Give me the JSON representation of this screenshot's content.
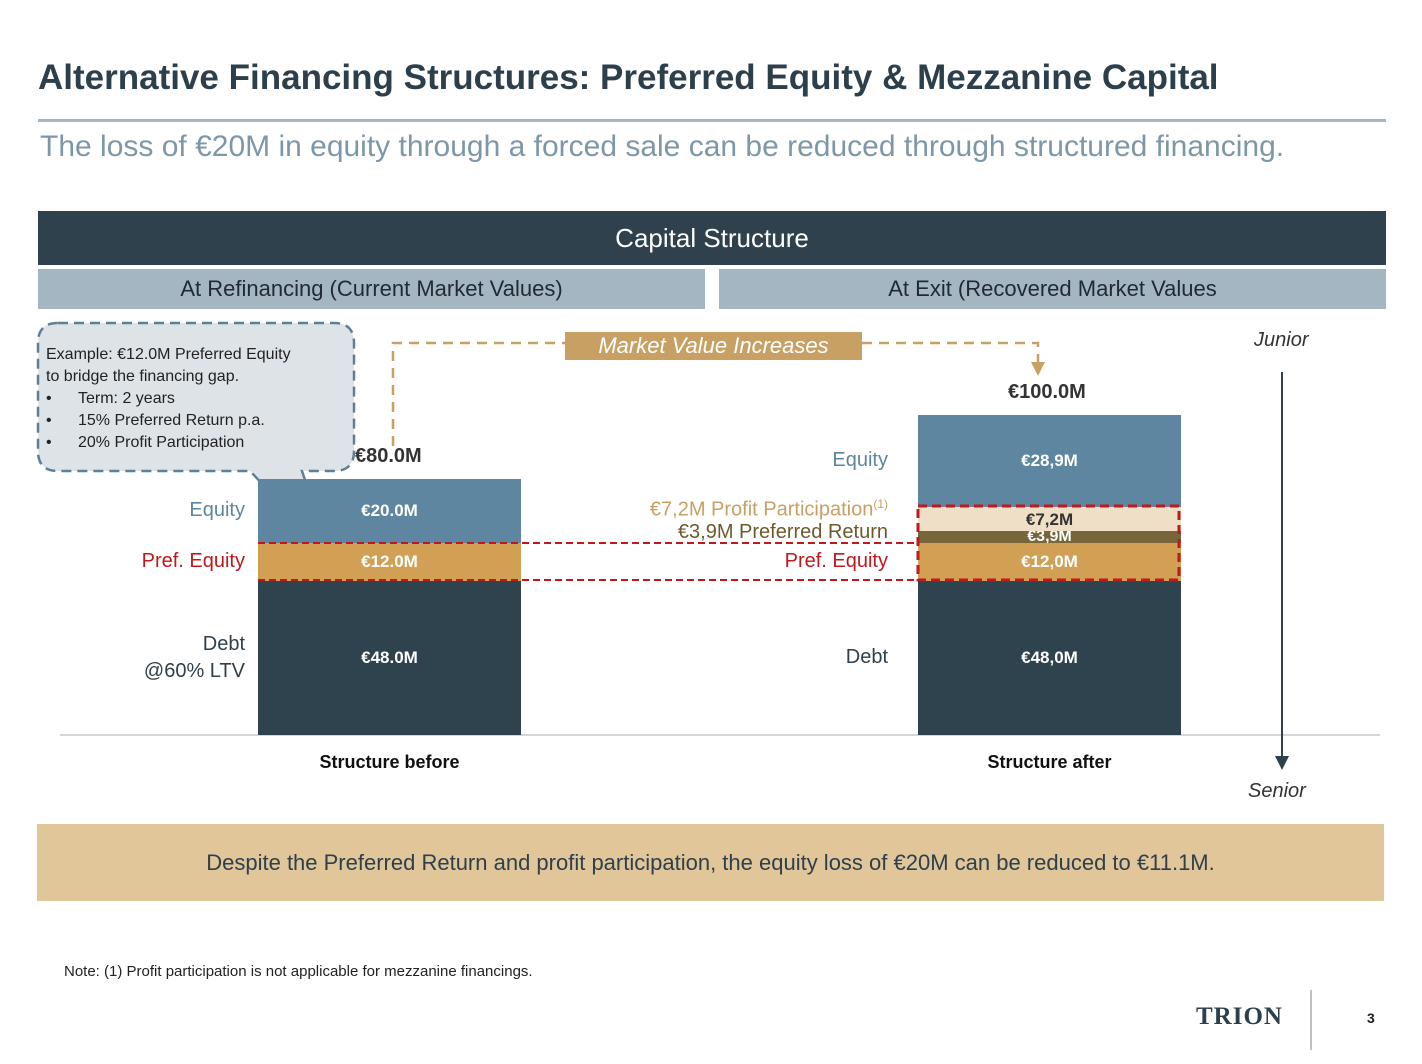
{
  "header": {
    "title": "Alternative Financing Structures: Preferred Equity & Mezzanine Capital",
    "subtitle": "The loss of €20M in equity through a forced sale can be reduced through structured financing."
  },
  "banner": {
    "main": "Capital Structure",
    "left": "At Refinancing (Current Market Values)",
    "right": "At Exit (Recovered Market Values"
  },
  "callout": {
    "example_label": "Example",
    "example_text": ": €12.0M Preferred Equity",
    "example_text2": "to bridge the financing gap.",
    "bullets": [
      "Term: 2 years",
      "15% Preferred Return p.a.",
      "20% Profit Participation"
    ],
    "bullet_char": "•"
  },
  "market_value_label": "Market Value Increases",
  "seniority": {
    "top": "Junior",
    "bottom": "Senior"
  },
  "conclusion": "Despite the Preferred Return and profit participation, the equity loss of €20M can be reduced to €11.1M.",
  "footnote": "Note: (1) Profit participation is not applicable for mezzanine financings.",
  "logo": "TRION",
  "page_number": "3",
  "colors": {
    "debt": "#2f434e",
    "pref_equity": "#d1a055",
    "equity": "#5e86a0",
    "profit_participation": "#eedfc6",
    "preferred_return": "#77663a",
    "dashed_highlight": "#c0181c",
    "gold_line": "#c9a063"
  },
  "chart_data": {
    "type": "bar",
    "stacked": true,
    "ylim": [
      0,
      100
    ],
    "categories": [
      "Structure before",
      "Structure after"
    ],
    "totals": [
      "€80.0M",
      "€100.0M"
    ],
    "before": {
      "segments": [
        {
          "name": "Debt",
          "value": 48.0,
          "label": "€48.0M",
          "side_label": "Debt",
          "side_label2": "@60% LTV"
        },
        {
          "name": "Pref. Equity",
          "value": 12.0,
          "label": "€12.0M",
          "side_label": "Pref. Equity"
        },
        {
          "name": "Equity",
          "value": 20.0,
          "label": "€20.0M",
          "side_label": "Equity"
        }
      ]
    },
    "after": {
      "segments": [
        {
          "name": "Debt",
          "value": 48.0,
          "label": "€48,0M",
          "side_label": "Debt"
        },
        {
          "name": "Pref. Equity",
          "value": 12.0,
          "label": "€12,0M",
          "side_label": "Pref. Equity"
        },
        {
          "name": "Preferred Return",
          "value": 3.9,
          "label": "€3,9M",
          "side_label": "€3,9M Preferred Return"
        },
        {
          "name": "Profit Participation",
          "value": 7.2,
          "label": "€7,2M",
          "side_label": "€7,2M Profit Participation",
          "side_sup": "(1)"
        },
        {
          "name": "Equity",
          "value": 28.9,
          "label": "€28,9M",
          "side_label": "Equity"
        }
      ]
    }
  }
}
